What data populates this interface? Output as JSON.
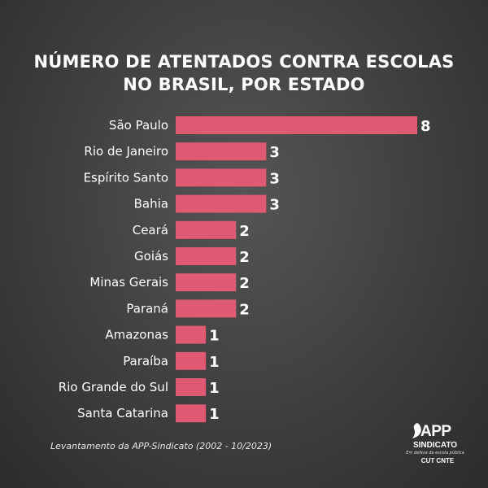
{
  "title": {
    "line1": "NÚMERO DE ATENTADOS CONTRA ESCOLAS",
    "line2": "NO BRASIL, POR ESTADO"
  },
  "chart_data": {
    "type": "bar",
    "orientation": "horizontal",
    "title": "NÚMERO DE ATENTADOS CONTRA ESCOLAS NO BRASIL, POR ESTADO",
    "categories": [
      "São Paulo",
      "Rio de Janeiro",
      "Espírito Santo",
      "Bahia",
      "Ceará",
      "Goiás",
      "Minas Gerais",
      "Paraná",
      "Amazonas",
      "Paraíba",
      "Rio Grande do Sul",
      "Santa Catarina"
    ],
    "values": [
      8,
      3,
      3,
      3,
      2,
      2,
      2,
      2,
      1,
      1,
      1,
      1
    ],
    "xlabel": "",
    "ylabel": "",
    "xlim": [
      0,
      8
    ],
    "grid": false,
    "bar_color": "#e05a73"
  },
  "footnote": "Levantamento da APP-Sindicato (2002 - 10/2023)",
  "logo": {
    "name": "APP",
    "subtitle": "SINDICATO",
    "tagline": "Em defesa da escola pública",
    "affiliations": "CUT CNTE"
  }
}
